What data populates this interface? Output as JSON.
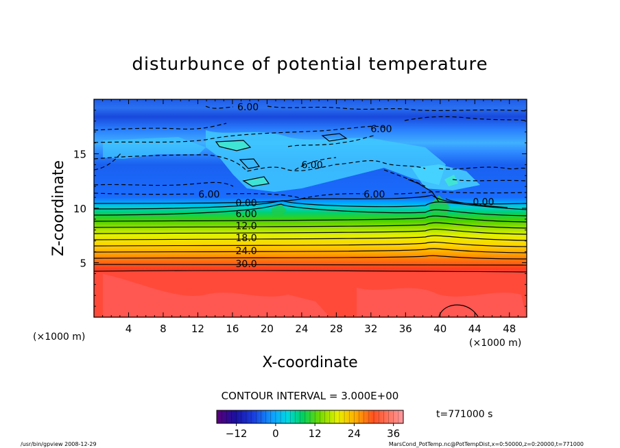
{
  "chart_data": {
    "type": "heatmap",
    "title": "disturbunce of potential temperature",
    "xlabel": "X-coordinate",
    "ylabel": "Z-coordinate",
    "x_unit": "(×1000 m)",
    "z_unit": "(×1000 m)",
    "xlim": [
      0,
      50
    ],
    "ylim": [
      0,
      20
    ],
    "x_ticks": [
      4,
      8,
      12,
      16,
      20,
      24,
      28,
      32,
      36,
      40,
      44,
      48
    ],
    "y_ticks": [
      5,
      10,
      15
    ],
    "contour_interval_label": "CONTOUR INTERVAL = 3.000E+00",
    "contour_labels": [
      {
        "text": "6.00",
        "x": 17.8,
        "z": 19.3
      },
      {
        "text": "6.00",
        "x": 33.2,
        "z": 17.3
      },
      {
        "text": "6.00",
        "x": 25.2,
        "z": 14.0
      },
      {
        "text": "6.00",
        "x": 13.3,
        "z": 11.3
      },
      {
        "text": "6.00",
        "x": 32.4,
        "z": 11.3
      },
      {
        "text": "0.00",
        "x": 17.6,
        "z": 10.5
      },
      {
        "text": "0.00",
        "x": 45.0,
        "z": 10.6
      },
      {
        "text": "6.00",
        "x": 17.6,
        "z": 9.5
      },
      {
        "text": "12.0",
        "x": 17.6,
        "z": 8.4
      },
      {
        "text": "18.0",
        "x": 17.6,
        "z": 7.3
      },
      {
        "text": "24.0",
        "x": 17.6,
        "z": 6.1
      },
      {
        "text": "30.0",
        "x": 17.6,
        "z": 4.9
      }
    ],
    "colorbar": {
      "min": -18,
      "max": 39,
      "ticks": [
        -12,
        0,
        12,
        24,
        36
      ],
      "tick_labels": [
        "−12",
        "0",
        "12",
        "24",
        "36"
      ]
    },
    "time_label": "t=771000 s",
    "footer_left": "/usr/bin/gpview   2008-12-29",
    "footer_right": "MarsCond_PotTemp.nc@PotTempDist,x=0:50000,z=0:20000,t=771000"
  }
}
